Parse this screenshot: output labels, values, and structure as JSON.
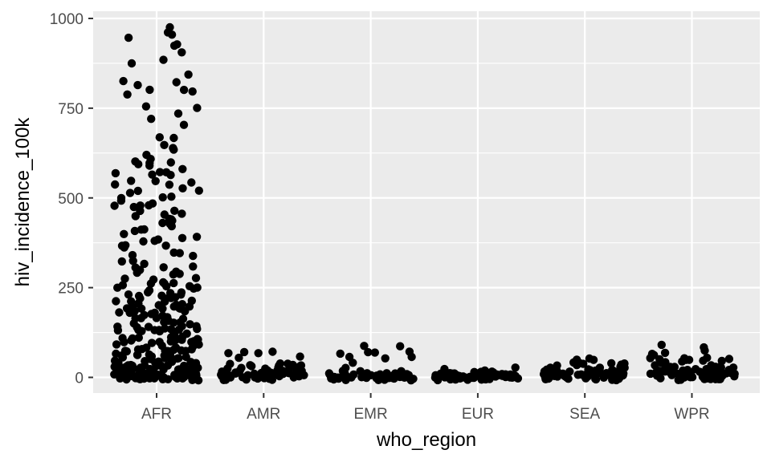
{
  "chart_data": {
    "type": "scatter",
    "title": "",
    "xlabel": "who_region",
    "ylabel": "hiv_incidence_100k",
    "categories": [
      "AFR",
      "AMR",
      "EMR",
      "EUR",
      "SEA",
      "WPR"
    ],
    "ylim": [
      -40,
      1020
    ],
    "yticks": [
      0,
      250,
      500,
      750,
      1000
    ],
    "yticklabels": [
      "0",
      "250",
      "500",
      "750",
      "1000"
    ],
    "grid": true,
    "legend": "none",
    "jitter_width": 0.4,
    "colors": {
      "panel": "#ebebeb",
      "grid": "#ffffff",
      "point": "#000000",
      "tick_text": "#4d4d4d",
      "axis_title": "#000000"
    },
    "points": [
      {
        "region": "AFR",
        "values": [
          972,
          970,
          958,
          953,
          930,
          925,
          900,
          880,
          880,
          850,
          825,
          820,
          812,
          803,
          800,
          795,
          785,
          755,
          750,
          730,
          727,
          700,
          675,
          660,
          640,
          637,
          630,
          618,
          605,
          600,
          595,
          590,
          590,
          585,
          580,
          578,
          575,
          570,
          565,
          560,
          555,
          548,
          545,
          540,
          535,
          530,
          525,
          520,
          515,
          510,
          505,
          500,
          495,
          490,
          485,
          480,
          478,
          475,
          470,
          465,
          460,
          455,
          450,
          445,
          440,
          435,
          430,
          425,
          420,
          415,
          410,
          405,
          400,
          395,
          390,
          385,
          380,
          375,
          370,
          365,
          360,
          355,
          350,
          345,
          340,
          335,
          330,
          325,
          320,
          315,
          310,
          305,
          300,
          295,
          290,
          285,
          280,
          275,
          270,
          265,
          262,
          260,
          258,
          255,
          252,
          250,
          248,
          245,
          242,
          240,
          238,
          235,
          232,
          230,
          228,
          225,
          222,
          220,
          218,
          215,
          212,
          210,
          208,
          205,
          202,
          200,
          198,
          195,
          192,
          190,
          188,
          185,
          182,
          180,
          178,
          175,
          172,
          170,
          168,
          165,
          162,
          160,
          158,
          155,
          152,
          150,
          148,
          145,
          142,
          140,
          138,
          135,
          132,
          130,
          128,
          125,
          122,
          120,
          118,
          115,
          112,
          110,
          108,
          105,
          102,
          100,
          98,
          95,
          92,
          90,
          88,
          85,
          82,
          80,
          78,
          75,
          72,
          70,
          68,
          65,
          62,
          60,
          58,
          55,
          52,
          50,
          48,
          45,
          42,
          40,
          38,
          35,
          32,
          30,
          28,
          25,
          22,
          20,
          18,
          15,
          12,
          10,
          8,
          5,
          3,
          2,
          1,
          0,
          120,
          95,
          60,
          45,
          30,
          20,
          15,
          10,
          5,
          3,
          2,
          1,
          0,
          140,
          110,
          80,
          55,
          35,
          25,
          18,
          12,
          8,
          4,
          2,
          1,
          0,
          160,
          130,
          100,
          70,
          50,
          40,
          28,
          22,
          14,
          9,
          6,
          3,
          1,
          0,
          90,
          65,
          45,
          30,
          20,
          12,
          7,
          4,
          2,
          1,
          0,
          75,
          50,
          33,
          24,
          16,
          11,
          6,
          3,
          1,
          0,
          260,
          230,
          190,
          150,
          115,
          85,
          62,
          44,
          31,
          19,
          13,
          7,
          4,
          2,
          0,
          210,
          175,
          135,
          105,
          72,
          52,
          36,
          26,
          17,
          10,
          5,
          2,
          0,
          300,
          270,
          240,
          200,
          170,
          145,
          125,
          100,
          85,
          70,
          58,
          47,
          38,
          29,
          21,
          14,
          8,
          3,
          0
        ]
      },
      {
        "region": "AMR",
        "values": [
          72,
          70,
          68,
          65,
          55,
          50,
          45,
          40,
          38,
          35,
          32,
          30,
          28,
          26,
          25,
          24,
          22,
          20,
          19,
          18,
          17,
          16,
          15,
          14,
          13,
          12,
          11,
          10,
          10,
          9,
          9,
          8,
          8,
          7,
          7,
          6,
          6,
          5,
          5,
          5,
          4,
          4,
          4,
          3,
          3,
          3,
          2,
          2,
          2,
          2,
          1,
          1,
          1,
          1,
          0,
          0,
          0,
          0,
          25,
          18,
          14,
          11,
          8,
          6,
          4,
          3,
          2,
          1,
          0,
          30,
          22,
          16,
          12,
          9,
          7,
          5,
          3,
          2,
          1,
          0,
          20,
          15,
          10,
          6,
          4,
          2,
          1,
          0
        ]
      },
      {
        "region": "EMR",
        "values": [
          90,
          85,
          70,
          65,
          65,
          62,
          60,
          58,
          55,
          45,
          28,
          20,
          15,
          12,
          10,
          8,
          7,
          6,
          5,
          5,
          4,
          4,
          3,
          3,
          3,
          2,
          2,
          2,
          2,
          1,
          1,
          1,
          1,
          1,
          0,
          0,
          0,
          0,
          0,
          0,
          8,
          5,
          3,
          2,
          1,
          1,
          0,
          0,
          4,
          3,
          2,
          1,
          1,
          0,
          0,
          6,
          4,
          2,
          1,
          0,
          0,
          3,
          2,
          1,
          0,
          0
        ]
      },
      {
        "region": "EUR",
        "values": [
          20,
          18,
          17,
          15,
          15,
          14,
          13,
          12,
          12,
          11,
          10,
          10,
          9,
          9,
          8,
          8,
          8,
          7,
          7,
          7,
          6,
          6,
          6,
          5,
          5,
          5,
          5,
          4,
          4,
          4,
          4,
          3,
          3,
          3,
          3,
          3,
          2,
          2,
          2,
          2,
          2,
          2,
          1,
          1,
          1,
          1,
          1,
          1,
          1,
          0,
          0,
          0,
          0,
          0,
          0,
          0,
          6,
          4,
          3,
          2,
          1,
          0,
          9,
          6,
          4,
          2,
          1,
          0,
          5,
          3,
          2,
          1,
          0,
          7,
          5,
          3,
          1,
          0
        ]
      },
      {
        "region": "SEA",
        "values": [
          48,
          46,
          45,
          44,
          42,
          40,
          38,
          36,
          35,
          33,
          32,
          30,
          28,
          27,
          26,
          25,
          24,
          23,
          22,
          21,
          20,
          19,
          18,
          17,
          16,
          15,
          15,
          14,
          13,
          12,
          12,
          11,
          10,
          10,
          9,
          9,
          8,
          8,
          7,
          7,
          6,
          6,
          5,
          5,
          5,
          4,
          4,
          4,
          3,
          3,
          3,
          2,
          2,
          2,
          2,
          1,
          1,
          1,
          1,
          0,
          0,
          0,
          0,
          18,
          12,
          8,
          5,
          3,
          1,
          0,
          22,
          15,
          10,
          6,
          3,
          1,
          0
        ]
      },
      {
        "region": "WPR",
        "values": [
          82,
          75,
          72,
          70,
          65,
          60,
          58,
          55,
          52,
          50,
          48,
          46,
          45,
          44,
          42,
          40,
          38,
          36,
          35,
          34,
          33,
          32,
          30,
          29,
          28,
          27,
          26,
          25,
          24,
          23,
          22,
          21,
          20,
          19,
          18,
          17,
          16,
          15,
          14,
          13,
          12,
          12,
          11,
          10,
          10,
          9,
          9,
          8,
          8,
          7,
          7,
          6,
          6,
          5,
          5,
          5,
          4,
          4,
          4,
          3,
          3,
          3,
          2,
          2,
          2,
          2,
          1,
          1,
          1,
          1,
          0,
          0,
          0,
          0,
          0,
          26,
          18,
          13,
          9,
          6,
          4,
          2,
          1,
          0,
          30,
          21,
          15,
          10,
          7,
          4,
          2,
          1,
          0
        ]
      }
    ]
  }
}
